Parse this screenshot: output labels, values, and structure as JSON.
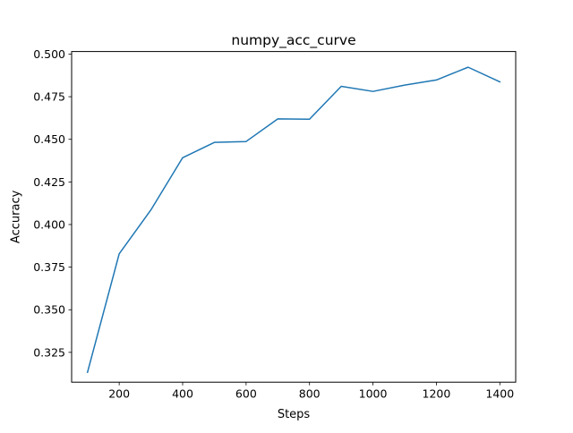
{
  "chart_data": {
    "type": "line",
    "title": "numpy_acc_curve",
    "xlabel": "Steps",
    "ylabel": "Accuracy",
    "xlim": [
      50,
      1450
    ],
    "ylim": [
      0.3075,
      0.5015
    ],
    "xticks": [
      200,
      400,
      600,
      800,
      1000,
      1200,
      1400
    ],
    "yticks": [
      0.325,
      0.35,
      0.375,
      0.4,
      0.425,
      0.45,
      0.475,
      0.5
    ],
    "xtick_labels": [
      "200",
      "400",
      "600",
      "800",
      "1000",
      "1200",
      "1400"
    ],
    "ytick_labels": [
      "0.325",
      "0.350",
      "0.375",
      "0.400",
      "0.425",
      "0.450",
      "0.475",
      "0.500"
    ],
    "grid": false,
    "series": [
      {
        "color": "#1f77b4",
        "x": [
          100,
          200,
          300,
          400,
          500,
          600,
          700,
          800,
          900,
          1000,
          1100,
          1200,
          1300,
          1400
        ],
        "y": [
          0.3133,
          0.3828,
          0.4086,
          0.4392,
          0.4482,
          0.4487,
          0.462,
          0.4618,
          0.4811,
          0.4781,
          0.4818,
          0.4848,
          0.4923,
          0.4837
        ]
      }
    ]
  }
}
